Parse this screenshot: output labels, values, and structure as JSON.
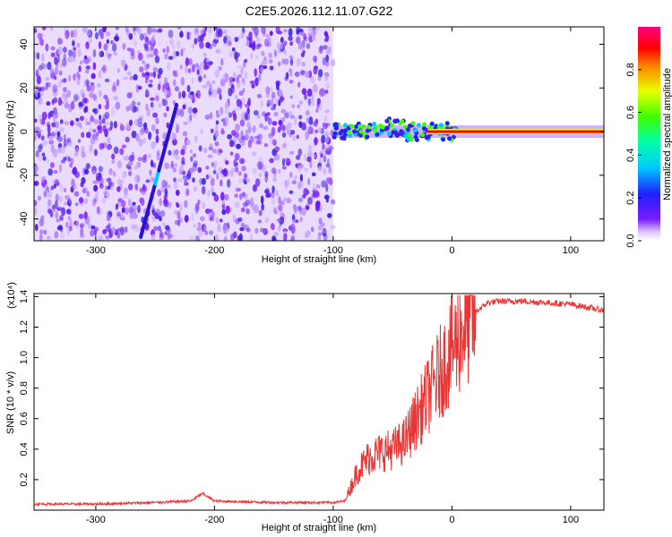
{
  "title": "C2E5.2026.112.11.07.G22",
  "colors": {
    "accent_line": "#ee3333",
    "spec_low": "#7a1dff",
    "spec_mid": "#00ff66",
    "spec_high": "#ff0000"
  },
  "chart_data": [
    {
      "type": "heatmap",
      "name": "spectrogram",
      "xlabel": "Height of straight line (km)",
      "ylabel": "Frequency (Hz)",
      "xlim": [
        -352,
        128
      ],
      "ylim": [
        -50,
        48
      ],
      "xticks": [
        -300,
        -200,
        -100,
        0,
        100
      ],
      "yticks": [
        -40,
        -20,
        0,
        20,
        40
      ],
      "colorbar": {
        "label": "Normalized spectral amplitude",
        "range": [
          0,
          1
        ],
        "ticks": [
          "0.0",
          "0.2",
          "0.4",
          "0.6",
          "0.8"
        ],
        "tick_values": [
          0.0,
          0.2,
          0.4,
          0.6,
          0.8
        ]
      },
      "noise_region_x": [
        -352,
        -100
      ],
      "carrier_freq_hz": 0,
      "carrier_x_range": [
        -100,
        128
      ]
    },
    {
      "type": "line",
      "name": "snr",
      "xlabel": "Height of straight line (km)",
      "ylabel": "SNR (10 * v/v)",
      "yscale_label": "(x10⁴)",
      "xlim": [
        -352,
        128
      ],
      "ylim": [
        0,
        1.42
      ],
      "xticks": [
        -300,
        -200,
        -100,
        0,
        100
      ],
      "yticks": [
        "0.2",
        "0.4",
        "0.6",
        "0.8",
        "1.0",
        "1.2",
        "1.4"
      ],
      "ytick_values": [
        0.2,
        0.4,
        0.6,
        0.8,
        1.0,
        1.2,
        1.4
      ],
      "series": [
        {
          "name": "SNR",
          "x": [
            -352,
            -300,
            -250,
            -220,
            -210,
            -200,
            -150,
            -100,
            -90,
            -80,
            -70,
            -60,
            -50,
            -40,
            -30,
            -20,
            -10,
            0,
            10,
            20,
            30,
            40,
            60,
            80,
            100,
            128
          ],
          "y": [
            0.04,
            0.04,
            0.05,
            0.06,
            0.11,
            0.06,
            0.05,
            0.05,
            0.06,
            0.25,
            0.35,
            0.38,
            0.4,
            0.45,
            0.6,
            0.75,
            0.9,
            1.05,
            1.2,
            1.3,
            1.36,
            1.37,
            1.37,
            1.36,
            1.35,
            1.31
          ]
        }
      ]
    }
  ]
}
